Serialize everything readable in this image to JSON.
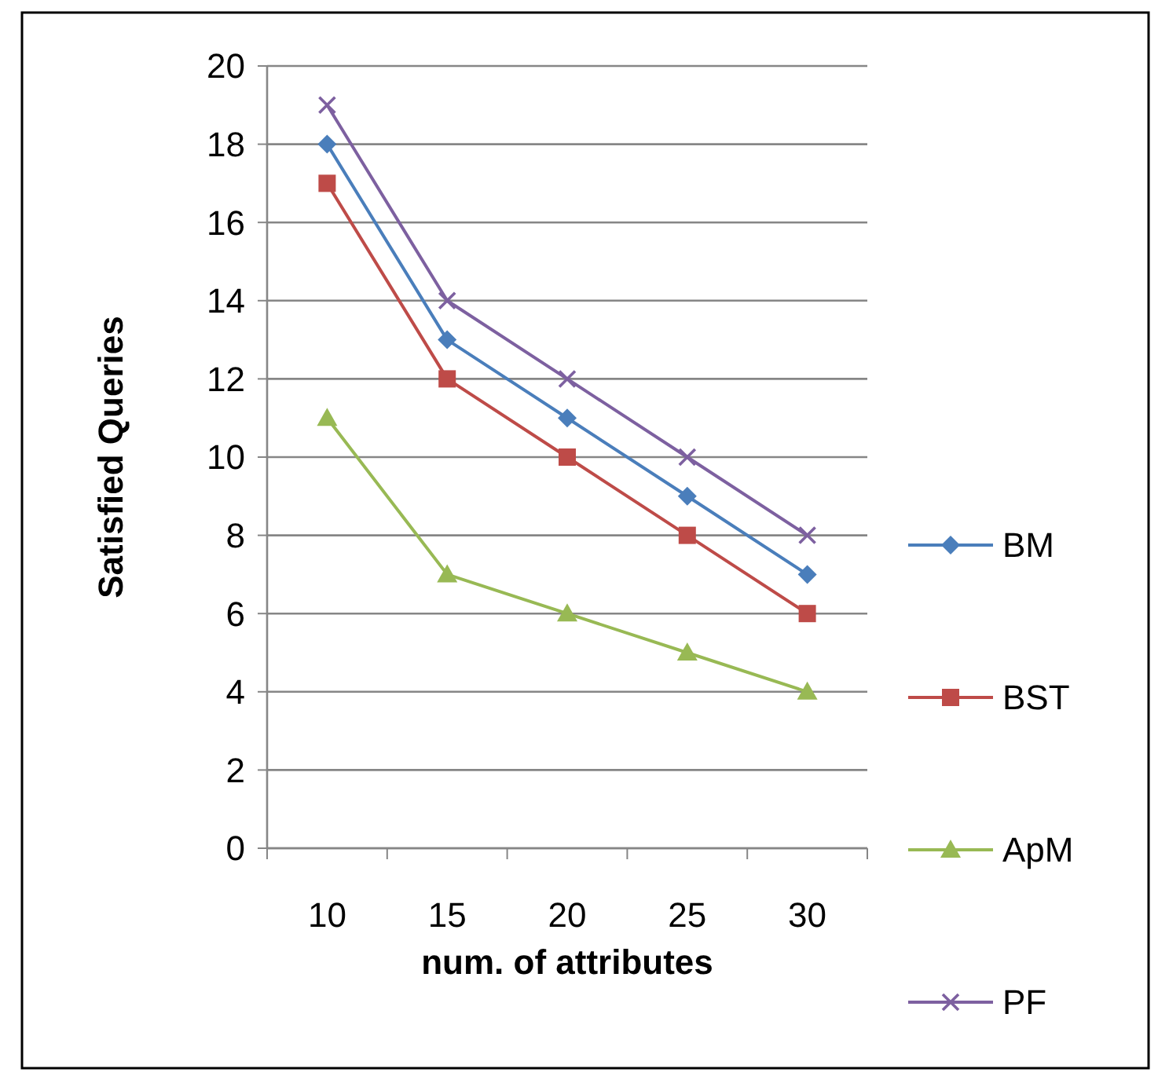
{
  "chart_data": {
    "type": "line",
    "xlabel": "num. of attributes",
    "ylabel": "Satisfied Queries",
    "categories": [
      "10",
      "15",
      "20",
      "25",
      "30"
    ],
    "ylim": [
      0,
      20
    ],
    "yticks": [
      0,
      2,
      4,
      6,
      8,
      10,
      12,
      14,
      16,
      18,
      20
    ],
    "grid": "y",
    "legend": "right",
    "series": [
      {
        "name": "BM",
        "color": "#4a7ebb",
        "marker": "diamond",
        "values": [
          18,
          13,
          11,
          9,
          7
        ]
      },
      {
        "name": "BST",
        "color": "#be4b48",
        "marker": "square",
        "values": [
          17,
          12,
          10,
          8,
          6
        ]
      },
      {
        "name": "ApM",
        "color": "#98b954",
        "marker": "triangle",
        "values": [
          11,
          7,
          6,
          5,
          4
        ]
      },
      {
        "name": "PF",
        "color": "#7d60a0",
        "marker": "cross",
        "values": [
          19,
          14,
          12,
          10,
          8
        ]
      }
    ]
  }
}
